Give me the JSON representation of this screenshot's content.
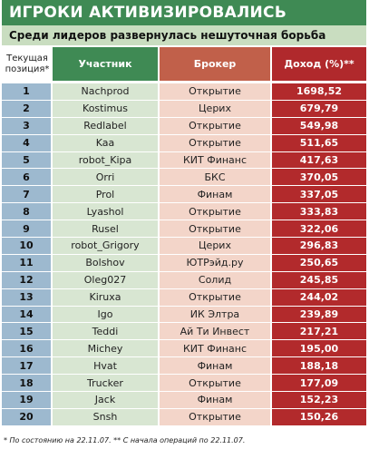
{
  "title": "ИГРОКИ АКТИВИЗИРОВАЛИСЬ",
  "subtitle": "Среди лидеров развернулась нешуточная борьба",
  "headers": {
    "position": "Текущая позиция*",
    "participant": "Участник",
    "broker": "Брокер",
    "income": "Доход (%)**"
  },
  "rows": [
    {
      "pos": "1",
      "name": "Nachprod",
      "broker": "Открытие",
      "income": "1698,52"
    },
    {
      "pos": "2",
      "name": "Kostimus",
      "broker": "Церих",
      "income": "679,79"
    },
    {
      "pos": "3",
      "name": "Redlabel",
      "broker": "Открытие",
      "income": "549,98"
    },
    {
      "pos": "4",
      "name": "Kaa",
      "broker": "Открытие",
      "income": "511,65"
    },
    {
      "pos": "5",
      "name": "robot_Kipa",
      "broker": "КИТ Финанс",
      "income": "417,63"
    },
    {
      "pos": "6",
      "name": "Orri",
      "broker": "БКС",
      "income": "370,05"
    },
    {
      "pos": "7",
      "name": "Prol",
      "broker": "Финам",
      "income": "337,05"
    },
    {
      "pos": "8",
      "name": "Lyashol",
      "broker": "Открытие",
      "income": "333,83"
    },
    {
      "pos": "9",
      "name": "Rusel",
      "broker": "Открытие",
      "income": "322,06"
    },
    {
      "pos": "10",
      "name": "robot_Grigory",
      "broker": "Церих",
      "income": "296,83"
    },
    {
      "pos": "11",
      "name": "Bolshov",
      "broker": "ЮТРэйд.ру",
      "income": "250,65"
    },
    {
      "pos": "12",
      "name": "Oleg027",
      "broker": "Солид",
      "income": "245,85"
    },
    {
      "pos": "13",
      "name": "Kiruxa",
      "broker": "Открытие",
      "income": "244,02"
    },
    {
      "pos": "14",
      "name": "Igo",
      "broker": "ИК Элтра",
      "income": "239,89"
    },
    {
      "pos": "15",
      "name": "Teddi",
      "broker": "Ай Ти Инвест",
      "income": "217,21"
    },
    {
      "pos": "16",
      "name": "Michey",
      "broker": "КИТ Финанс",
      "income": "195,00"
    },
    {
      "pos": "17",
      "name": "Hvat",
      "broker": "Финам",
      "income": "188,18"
    },
    {
      "pos": "18",
      "name": "Trucker",
      "broker": "Открытие",
      "income": "177,09"
    },
    {
      "pos": "19",
      "name": "Jack",
      "broker": "Финам",
      "income": "152,23"
    },
    {
      "pos": "20",
      "name": "Snsh",
      "broker": "Открытие",
      "income": "150,26"
    }
  ],
  "footnote": "* По состоянию на 22.11.07.  ** С начала операций по 22.11.07.",
  "colors": {
    "title_bg": "#3f8a54",
    "subtitle_bg": "#c9ddc0",
    "position_bg": "#9db9cf",
    "participant_bg": "#d8e6d2",
    "broker_bg": "#f3d5c9",
    "income_bg": "#b22a2c"
  }
}
